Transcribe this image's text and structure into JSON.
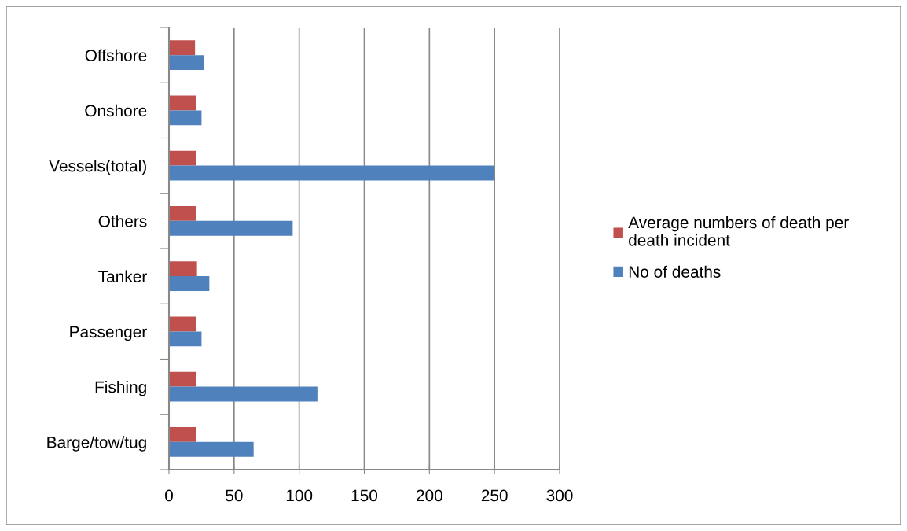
{
  "chart_data": {
    "type": "bar",
    "orientation": "horizontal",
    "categories": [
      "Offshore",
      "Onshore",
      "Vessels(total)",
      "Others",
      "Tanker",
      "Passenger",
      "Fishing",
      "Barge/tow/tug"
    ],
    "series": [
      {
        "name": "Average numbers of death per death incident",
        "color": "#c0504d",
        "values": [
          20,
          21,
          21,
          21,
          21.5,
          21,
          21,
          21
        ]
      },
      {
        "name": "No of deaths",
        "color": "#4f81bd",
        "values": [
          27,
          25,
          250,
          95,
          31,
          25,
          114,
          65
        ]
      }
    ],
    "xlim": [
      0,
      300
    ],
    "xticks": [
      0,
      50,
      100,
      150,
      200,
      250,
      300
    ],
    "grid": "x",
    "legend": "right"
  }
}
